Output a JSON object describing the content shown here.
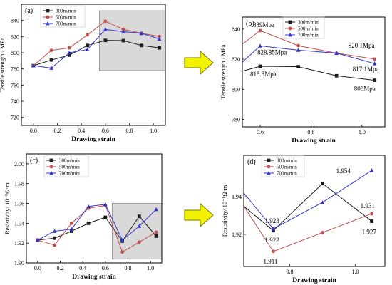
{
  "chart_data": [
    {
      "panel": "(a)",
      "type": "line",
      "xlabel": "Drawing strain",
      "ylabel": "Tensile strength / MPa",
      "xlim": [
        -0.1,
        1.1
      ],
      "ylim": [
        710,
        860
      ],
      "xticks": [
        0.0,
        0.2,
        0.4,
        0.6,
        0.8,
        1.0
      ],
      "yticks": [
        720,
        740,
        760,
        780,
        800,
        820,
        840
      ],
      "highlight": {
        "x": [
          0.55,
          1.1
        ],
        "y": [
          778,
          852
        ],
        "color": "#d9d9d9"
      },
      "series": [
        {
          "name": "300m/min",
          "color": "#1a1a1a",
          "marker": "square",
          "x": [
            0.0,
            0.15,
            0.3,
            0.45,
            0.6,
            0.75,
            0.9,
            1.05
          ],
          "y": [
            784,
            791,
            797,
            809,
            815.3,
            815,
            809,
            806
          ]
        },
        {
          "name": "500m/min",
          "color": "#c0504d",
          "marker": "circle",
          "x": [
            0.0,
            0.15,
            0.3,
            0.45,
            0.6,
            0.75,
            0.9,
            1.05
          ],
          "y": [
            784,
            803,
            806,
            822,
            839,
            829,
            824,
            820.1
          ]
        },
        {
          "name": "700m/min",
          "color": "#3333cc",
          "marker": "triangle",
          "x": [
            0.0,
            0.15,
            0.3,
            0.45,
            0.6,
            0.75,
            0.9,
            1.05
          ],
          "y": [
            784,
            781,
            800,
            804,
            828.85,
            826,
            824,
            817.1
          ]
        }
      ]
    },
    {
      "panel": "(b)",
      "type": "line",
      "xlabel": "Drawing strain",
      "ylabel": "Tensile strength / MPa",
      "xlim": [
        0.53,
        1.09
      ],
      "ylim": [
        775,
        848
      ],
      "xticks": [
        0.6,
        0.8,
        1.0
      ],
      "yticks": [
        780,
        800,
        820,
        840
      ],
      "series": [
        {
          "name": "300m/min",
          "color": "#1a1a1a",
          "marker": "square",
          "x": [
            0.53,
            0.6,
            0.75,
            0.9,
            1.05
          ],
          "y": [
            812,
            815.3,
            815,
            809,
            806
          ]
        },
        {
          "name": "500m/min",
          "color": "#c0504d",
          "marker": "circle",
          "x": [
            0.53,
            0.6,
            0.75,
            0.9,
            1.05
          ],
          "y": [
            830,
            839,
            829,
            824,
            820.1
          ]
        },
        {
          "name": "700m/min",
          "color": "#3333cc",
          "marker": "triangle",
          "x": [
            0.53,
            0.6,
            0.75,
            0.9,
            1.05
          ],
          "y": [
            818,
            828.85,
            826,
            824,
            817.1
          ]
        }
      ],
      "annotations": [
        {
          "text": "839Mpa",
          "x": 0.6,
          "y": 839,
          "dx": -10,
          "dy": -5
        },
        {
          "text": "828.85Mpa",
          "x": 0.6,
          "y": 828.85,
          "dx": -4,
          "dy": 12
        },
        {
          "text": "815.3Mpa",
          "x": 0.6,
          "y": 815.3,
          "dx": -14,
          "dy": 14
        },
        {
          "text": "820.1Mpa",
          "x": 1.05,
          "y": 820.1,
          "dx": -37,
          "dy": -16
        },
        {
          "text": "817.1Mpa",
          "x": 1.05,
          "y": 817.1,
          "dx": -31,
          "dy": 11
        },
        {
          "text": "806Mpa",
          "x": 1.05,
          "y": 806,
          "dx": -29,
          "dy": 15
        }
      ]
    },
    {
      "panel": "(c)",
      "type": "line",
      "xlabel": "Drawing strain",
      "ylabel": "Resistivity/ 10⁻⁸Ω·m",
      "xlim": [
        -0.1,
        1.1
      ],
      "ylim": [
        1.9,
        2.01
      ],
      "xticks": [
        0.0,
        0.2,
        0.4,
        0.6,
        0.8,
        1.0
      ],
      "yticks": [
        1.9,
        1.92,
        1.94,
        1.96,
        1.98,
        2.0
      ],
      "highlight": {
        "x": [
          0.66,
          1.1
        ],
        "y": [
          1.904,
          1.96
        ],
        "color": "#d9d9d9"
      },
      "series": [
        {
          "name": "300m/min",
          "color": "#1a1a1a",
          "marker": "square",
          "x": [
            0.0,
            0.15,
            0.3,
            0.45,
            0.6,
            0.75,
            0.9,
            1.05
          ],
          "y": [
            1.923,
            1.925,
            1.932,
            1.94,
            1.946,
            1.922,
            1.947,
            1.927
          ]
        },
        {
          "name": "500m/min",
          "color": "#c0504d",
          "marker": "circle",
          "x": [
            0.0,
            0.15,
            0.3,
            0.45,
            0.6,
            0.75,
            0.9,
            1.05
          ],
          "y": [
            1.923,
            1.918,
            1.94,
            1.955,
            1.958,
            1.911,
            1.921,
            1.931
          ]
        },
        {
          "name": "700m/min",
          "color": "#3333cc",
          "marker": "triangle",
          "x": [
            0.0,
            0.15,
            0.3,
            0.45,
            0.6,
            0.75,
            0.9,
            1.05
          ],
          "y": [
            1.923,
            1.932,
            1.934,
            1.957,
            1.959,
            1.923,
            1.937,
            1.954
          ]
        }
      ]
    },
    {
      "panel": "(d)",
      "type": "line",
      "xlabel": "Drawing strain",
      "ylabel": "Resistivity/ 10⁻⁸Ω·m",
      "xlim": [
        0.66,
        1.09
      ],
      "ylim": [
        1.903,
        1.962
      ],
      "xticks": [
        0.8,
        1.0
      ],
      "yticks": [
        1.92,
        1.94
      ],
      "series": [
        {
          "name": "300m/min",
          "color": "#1a1a1a",
          "marker": "square",
          "x": [
            0.66,
            0.75,
            0.9,
            1.05
          ],
          "y": [
            1.935,
            1.922,
            1.947,
            1.927
          ]
        },
        {
          "name": "500m/min",
          "color": "#c0504d",
          "marker": "circle",
          "x": [
            0.66,
            0.75,
            0.9,
            1.05
          ],
          "y": [
            1.935,
            1.911,
            1.921,
            1.931
          ]
        },
        {
          "name": "700m/min",
          "color": "#3333cc",
          "marker": "triangle",
          "x": [
            0.66,
            0.75,
            0.9,
            1.05
          ],
          "y": [
            1.942,
            1.923,
            1.937,
            1.954
          ]
        }
      ],
      "annotations": [
        {
          "text": "1.923",
          "x": 0.75,
          "y": 1.923,
          "dx": -12,
          "dy": -8
        },
        {
          "text": "1.922",
          "x": 0.75,
          "y": 1.922,
          "dx": -12,
          "dy": 16
        },
        {
          "text": "1.911",
          "x": 0.75,
          "y": 1.911,
          "dx": -14,
          "dy": 17
        },
        {
          "text": "1.954",
          "x": 1.05,
          "y": 1.954,
          "dx": -50,
          "dy": 4
        },
        {
          "text": "1.931",
          "x": 1.05,
          "y": 1.931,
          "dx": -16,
          "dy": -8
        },
        {
          "text": "1.927",
          "x": 1.05,
          "y": 1.927,
          "dx": -14,
          "dy": 18
        }
      ]
    }
  ],
  "arrow_color": "#f2f200"
}
